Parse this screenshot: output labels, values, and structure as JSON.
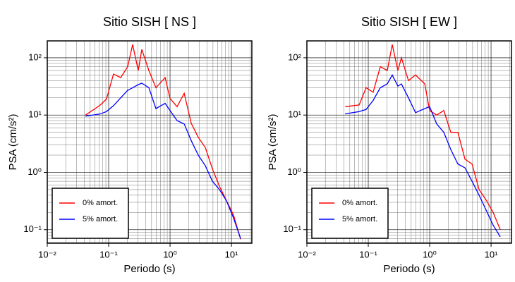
{
  "chart_data": [
    {
      "type": "line",
      "title": "Sitio SISH [ NS ]",
      "xlabel": "Periodo (s)",
      "ylabel": "PSA (cm/s²)",
      "log_x": true,
      "log_y": true,
      "grid": true,
      "minor_grid": true,
      "legend": "lower left",
      "xlim": [
        0.01,
        21.5
      ],
      "ylim": [
        0.058,
        197
      ],
      "xticks": [
        {
          "value": 0.01,
          "label": "10⁻²"
        },
        {
          "value": 0.1,
          "label": "10⁻¹"
        },
        {
          "value": 1,
          "label": "10⁰"
        },
        {
          "value": 10,
          "label": "10¹"
        }
      ],
      "yticks": [
        {
          "value": 0.1,
          "label": "10⁻¹"
        },
        {
          "value": 1,
          "label": "10⁰"
        },
        {
          "value": 10,
          "label": "10¹"
        },
        {
          "value": 100,
          "label": "10²"
        }
      ],
      "x": [
        0.042,
        0.071,
        0.092,
        0.12,
        0.157,
        0.204,
        0.246,
        0.304,
        0.347,
        0.452,
        0.589,
        0.831,
        1,
        1.3,
        1.7,
        2.21,
        2.88,
        3.76,
        4.9,
        6.38,
        8.3,
        10.8,
        14.1
      ],
      "series": [
        {
          "name": "0% amort.",
          "color": "#ff0000",
          "values": [
            10,
            14.6,
            19,
            52,
            45,
            70,
            170,
            60,
            140,
            60,
            30,
            45,
            19.5,
            14,
            24,
            7.2,
            4.1,
            2.7,
            1.15,
            0.57,
            0.32,
            0.18,
            0.068
          ]
        },
        {
          "name": "5% amort.",
          "color": "#0000ff",
          "values": [
            9.6,
            10.4,
            11.5,
            14.6,
            20,
            27,
            30,
            34,
            36,
            30,
            13,
            16,
            12,
            8,
            7,
            3.6,
            2,
            1.3,
            0.7,
            0.5,
            0.32,
            0.16,
            0.07
          ]
        }
      ]
    },
    {
      "type": "line",
      "title": "Sitio SISH [ EW ]",
      "xlabel": "Periodo (s)",
      "ylabel": "PSA (cm/s²)",
      "log_x": true,
      "log_y": true,
      "grid": true,
      "minor_grid": true,
      "legend": "lower left",
      "xlim": [
        0.01,
        21.5
      ],
      "ylim": [
        0.058,
        197
      ],
      "xticks": [
        {
          "value": 0.01,
          "label": "10⁻²"
        },
        {
          "value": 0.1,
          "label": "10⁻¹"
        },
        {
          "value": 1,
          "label": "10⁰"
        },
        {
          "value": 10,
          "label": "10¹"
        }
      ],
      "yticks": [
        {
          "value": 0.1,
          "label": "10⁻¹"
        },
        {
          "value": 1,
          "label": "10⁰"
        },
        {
          "value": 10,
          "label": "10¹"
        },
        {
          "value": 100,
          "label": "10²"
        }
      ],
      "x": [
        0.042,
        0.071,
        0.092,
        0.12,
        0.157,
        0.204,
        0.246,
        0.304,
        0.347,
        0.452,
        0.589,
        0.831,
        1,
        1.3,
        1.7,
        2.21,
        2.88,
        3.76,
        4.9,
        6.38,
        8.3,
        10.8,
        14.1
      ],
      "series": [
        {
          "name": "0% amort.",
          "color": "#ff0000",
          "values": [
            14,
            15,
            30,
            25,
            70,
            60,
            170,
            60,
            100,
            40,
            50,
            35,
            12,
            10,
            12,
            5,
            5,
            1.7,
            1.4,
            0.5,
            0.33,
            0.2,
            0.1
          ]
        },
        {
          "name": "5% amort.",
          "color": "#0000ff",
          "values": [
            10.5,
            11.5,
            12.5,
            18,
            30,
            35,
            50,
            32,
            35,
            20,
            11,
            13,
            14,
            7,
            5,
            2.5,
            1.4,
            1.2,
            0.7,
            0.4,
            0.22,
            0.12,
            0.075
          ]
        }
      ]
    }
  ]
}
